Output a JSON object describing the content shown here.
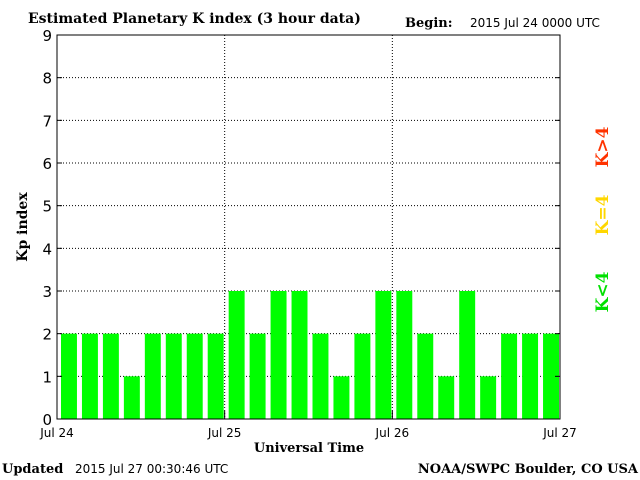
{
  "header": {
    "title": "Estimated Planetary K index (3 hour data)",
    "begin_label": "Begin:",
    "begin_value": "2015 Jul 24 0000 UTC"
  },
  "footer": {
    "updated_label": "Updated",
    "updated_value": "2015 Jul 27 00:30:46 UTC",
    "source": "NOAA/SWPC Boulder, CO USA"
  },
  "legend": [
    {
      "text": "K<4",
      "color": "#00ff00"
    },
    {
      "text": "K=4",
      "color": "#ffd700"
    },
    {
      "text": "K>4",
      "color": "#ff3300"
    }
  ],
  "chart_data": {
    "type": "bar",
    "title": "Estimated Planetary K index (3 hour data)",
    "xlabel": "Universal Time",
    "ylabel": "Kp index",
    "ylim": [
      0,
      9
    ],
    "yticks": [
      0,
      1,
      2,
      3,
      4,
      5,
      6,
      7,
      8,
      9
    ],
    "xticks": [
      "Jul 24",
      "Jul 25",
      "Jul 26",
      "Jul 27"
    ],
    "bar_color": "#00ff00",
    "grid": true,
    "values": [
      2,
      2,
      2,
      1,
      2,
      2,
      2,
      2,
      3,
      2,
      3,
      3,
      2,
      1,
      2,
      3,
      3,
      2,
      1,
      3,
      1,
      2,
      2,
      2
    ]
  }
}
